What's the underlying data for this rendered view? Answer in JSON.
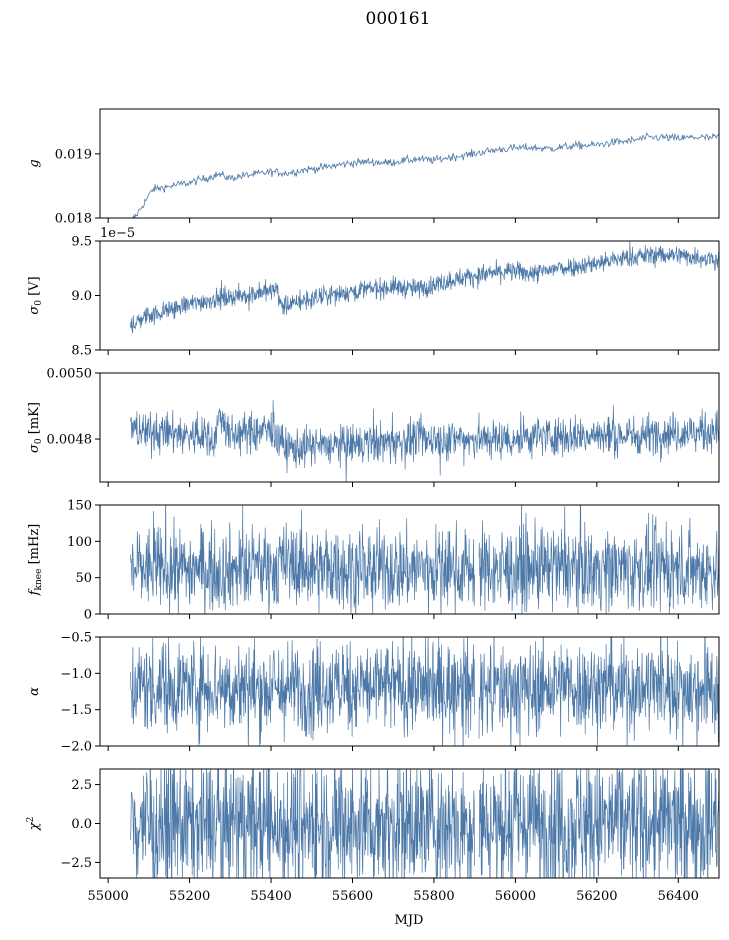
{
  "figure": {
    "title": "000161",
    "xlabel": "MJD"
  },
  "colors": {
    "series": "#4c78a8",
    "axes": "#000000",
    "background": "#ffffff"
  },
  "chart_data": [
    {
      "type": "line",
      "ylabel": "g",
      "ylabel_display": "g",
      "ylim": [
        0.018,
        0.0197
      ],
      "yticks": [
        0.018,
        0.019
      ],
      "ytick_labels": [
        "0.018",
        "0.019"
      ],
      "xlim": [
        54980,
        56500
      ],
      "style": "thin",
      "series": [
        {
          "x": [
            55055,
            55070,
            55090,
            55110,
            55140,
            55170,
            55200,
            55240,
            55270,
            55300,
            55330,
            55360,
            55400,
            55440,
            55480,
            55520,
            55560,
            55600,
            55640,
            55680,
            55720,
            55760,
            55800,
            55840,
            55880,
            55920,
            55960,
            56000,
            56040,
            56080,
            56120,
            56160,
            56200,
            56240,
            56280,
            56320,
            56360,
            56400,
            56440,
            56480,
            56510
          ],
          "values": [
            0.01795,
            0.01805,
            0.01825,
            0.01845,
            0.01848,
            0.01852,
            0.01855,
            0.01862,
            0.01868,
            0.01862,
            0.01866,
            0.01868,
            0.01872,
            0.0187,
            0.01875,
            0.01878,
            0.01882,
            0.01886,
            0.01888,
            0.01886,
            0.01889,
            0.01892,
            0.0189,
            0.01895,
            0.01898,
            0.01903,
            0.01907,
            0.01909,
            0.0191,
            0.01908,
            0.01911,
            0.01913,
            0.01914,
            0.01918,
            0.0192,
            0.01925,
            0.01926,
            0.01924,
            0.01926,
            0.01925,
            0.01928
          ]
        }
      ]
    },
    {
      "type": "line",
      "ylabel": "σ0 [V]",
      "ylim": [
        8.5,
        9.5
      ],
      "yticks": [
        8.5,
        9.0,
        9.5
      ],
      "ytick_labels": [
        "8.5",
        "9.0",
        "9.5"
      ],
      "offset_label": "1e−5",
      "xlim": [
        54980,
        56500
      ],
      "style": "dense",
      "series": [
        {
          "x": [
            55055,
            55100,
            55150,
            55200,
            55250,
            55300,
            55350,
            55400,
            55415,
            55425,
            55480,
            55550,
            55620,
            55700,
            55760,
            55800,
            55850,
            55900,
            55950,
            56000,
            56050,
            56100,
            56150,
            56200,
            56250,
            56300,
            56350,
            56400,
            56450,
            56510
          ],
          "values": [
            8.73,
            8.82,
            8.87,
            8.92,
            8.96,
            8.99,
            9.01,
            9.04,
            9.06,
            8.9,
            8.95,
            9.01,
            9.05,
            9.08,
            9.06,
            9.1,
            9.15,
            9.18,
            9.21,
            9.22,
            9.2,
            9.25,
            9.27,
            9.3,
            9.33,
            9.36,
            9.38,
            9.37,
            9.35,
            9.33
          ],
          "spread": 0.045
        }
      ]
    },
    {
      "type": "line",
      "ylabel": "σ0 [mK]",
      "ylim": [
        0.00467,
        0.005
      ],
      "yticks": [
        0.0048,
        0.005
      ],
      "ytick_labels": [
        "0.0048",
        "0.0050"
      ],
      "xlim": [
        54980,
        56500
      ],
      "style": "dense",
      "series": [
        {
          "x": [
            55055,
            55100,
            55150,
            55200,
            55230,
            55260,
            55275,
            55300,
            55350,
            55400,
            55430,
            55450,
            55500,
            55550,
            55600,
            55650,
            55700,
            55750,
            55800,
            55850,
            55900,
            55950,
            56000,
            56050,
            56100,
            56150,
            56200,
            56250,
            56300,
            56350,
            56400,
            56450,
            56510
          ],
          "values": [
            0.00483,
            0.00482,
            0.00482,
            0.00481,
            0.00481,
            0.0048,
            0.00487,
            0.00481,
            0.00482,
            0.00483,
            0.00478,
            0.00477,
            0.00478,
            0.00478,
            0.00478,
            0.00479,
            0.00479,
            0.0048,
            0.0048,
            0.0048,
            0.0048,
            0.0048,
            0.0048,
            0.00481,
            0.00481,
            0.00481,
            0.00481,
            0.00481,
            0.00481,
            0.00482,
            0.00482,
            0.00482,
            0.00483
          ],
          "spread": 3e-05
        }
      ]
    },
    {
      "type": "line",
      "ylabel": "fknee [mHz]",
      "ylim": [
        0,
        150
      ],
      "yticks": [
        0,
        50,
        100,
        150
      ],
      "ytick_labels": [
        "0",
        "50",
        "100",
        "150"
      ],
      "xlim": [
        54980,
        56500
      ],
      "style": "dense",
      "gap": [
        55900,
        55910
      ],
      "series": [
        {
          "x": [
            55055,
            55150,
            55250,
            55300,
            55350,
            55450,
            55550,
            55650,
            55750,
            55850,
            55950,
            56050,
            56150,
            56250,
            56350,
            56450,
            56510
          ],
          "values": [
            63,
            63,
            63,
            62,
            62,
            68,
            63,
            62,
            62,
            63,
            62,
            62,
            64,
            62,
            62,
            62,
            62
          ],
          "spread": 28
        }
      ]
    },
    {
      "type": "line",
      "ylabel": "α",
      "ylim": [
        -2.0,
        -0.5
      ],
      "yticks": [
        -2.0,
        -1.5,
        -1.0,
        -0.5
      ],
      "ytick_labels": [
        "−2.0",
        "−1.5",
        "−1.0",
        "−0.5"
      ],
      "xlim": [
        54980,
        56500
      ],
      "style": "dense",
      "gap": [
        55900,
        55910
      ],
      "series": [
        {
          "x": [
            55055,
            55150,
            55250,
            55350,
            55450,
            55550,
            55650,
            55750,
            55850,
            55950,
            56050,
            56150,
            56250,
            56350,
            56450,
            56510
          ],
          "values": [
            -1.18,
            -1.18,
            -1.17,
            -1.22,
            -1.22,
            -1.18,
            -1.18,
            -1.19,
            -1.19,
            -1.22,
            -1.2,
            -1.19,
            -1.2,
            -1.17,
            -1.2,
            -1.2
          ],
          "spread": 0.32
        }
      ]
    },
    {
      "type": "line",
      "ylabel": "χ2",
      "ylim": [
        -3.5,
        3.5
      ],
      "yticks": [
        -2.5,
        0.0,
        2.5
      ],
      "ytick_labels": [
        "−2.5",
        "0.0",
        "2.5"
      ],
      "xlim": [
        54980,
        56500
      ],
      "style": "dense",
      "gap": [
        55900,
        55910
      ],
      "xticks": [
        55000,
        55200,
        55400,
        55600,
        55800,
        56000,
        56200,
        56400
      ],
      "xtick_labels": [
        "55000",
        "55200",
        "55400",
        "55600",
        "55800",
        "56000",
        "56200",
        "56400"
      ],
      "series": [
        {
          "x": [
            55055,
            55200,
            55400,
            55600,
            55800,
            56000,
            56200,
            56400,
            56510
          ],
          "values": [
            0,
            0,
            0,
            0,
            0,
            0,
            0,
            0,
            0
          ],
          "spread": 2.2
        }
      ]
    }
  ]
}
